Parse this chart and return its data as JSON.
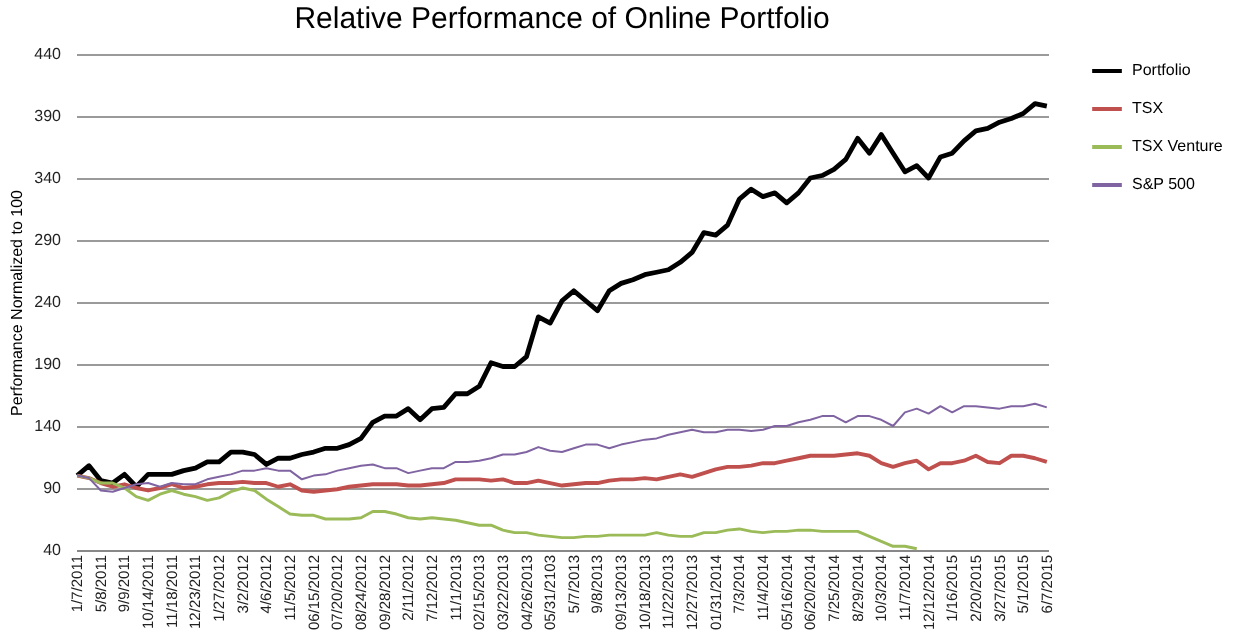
{
  "chart_data": {
    "type": "line",
    "title": "Relative Performance of Online Portfolio",
    "ylabel": "Performance Normalized to 100",
    "categories": [
      "1/7/2011",
      null,
      "5/8/2011",
      null,
      "9/9/2011",
      null,
      "10/14/2011",
      null,
      "11/18/2011",
      null,
      "12/23/2011",
      null,
      "1/27/2012",
      null,
      "3/2/2012",
      null,
      "4/6/2012",
      null,
      "11/5/2012",
      null,
      "06/15/2012",
      null,
      "07/20/2012",
      null,
      "08/24/2012",
      null,
      "09/28/2012",
      null,
      "2/11/2012",
      null,
      "7/12/2012",
      null,
      "11/1/2013",
      null,
      "02/15/2013",
      null,
      "03/22/2013",
      null,
      "04/26/2013",
      null,
      "05/31/2103",
      null,
      "5/7/2013",
      null,
      "9/8/2013",
      null,
      "09/13/2013",
      null,
      "10/18/2013",
      null,
      "11/22/2013",
      null,
      "12/27/2013",
      null,
      "01/31/2014",
      null,
      "7/3/2014",
      null,
      "11/4/2014",
      null,
      "05/16/2014",
      null,
      "06/20/2014",
      null,
      "7/25/2014",
      null,
      "8/29/2014",
      null,
      "10/3/2014",
      null,
      "11/7/2014",
      null,
      "12/12/2014",
      null,
      "1/16/2015",
      null,
      "2/20/2015",
      null,
      "3/27/2015",
      null,
      "5/1/2015",
      null,
      "6/7/2015"
    ],
    "series": [
      {
        "name": "Portfolio",
        "color": "#000000",
        "values": [
          100,
          108,
          96,
          94,
          101,
          91,
          101,
          101,
          101,
          104,
          106,
          111,
          111,
          119,
          119,
          117,
          109,
          114,
          114,
          117,
          119,
          122,
          122,
          125,
          130,
          143,
          148,
          148,
          154,
          145,
          154,
          155,
          166,
          166,
          172,
          191,
          188,
          188,
          196,
          228,
          223,
          241,
          249,
          241,
          233,
          249,
          255,
          258,
          262,
          264,
          266,
          272,
          280,
          296,
          294,
          302,
          323,
          331,
          325,
          328,
          320,
          328,
          340,
          342,
          347,
          355,
          372,
          360,
          375,
          360,
          345,
          350,
          340,
          357,
          360,
          370,
          378,
          380,
          385,
          388,
          392,
          400,
          398
        ]
      },
      {
        "name": "TSX",
        "color": "#c0504d",
        "values": [
          100,
          98,
          94,
          91,
          93,
          90,
          88,
          90,
          93,
          90,
          91,
          93,
          94,
          94,
          95,
          94,
          94,
          91,
          93,
          88,
          87,
          88,
          89,
          91,
          92,
          93,
          93,
          93,
          92,
          92,
          93,
          94,
          97,
          97,
          97,
          96,
          97,
          94,
          94,
          96,
          94,
          92,
          93,
          94,
          94,
          96,
          97,
          97,
          98,
          97,
          99,
          101,
          99,
          102,
          105,
          107,
          107,
          108,
          110,
          110,
          112,
          114,
          116,
          116,
          116,
          117,
          118,
          116,
          110,
          107,
          110,
          112,
          105,
          110,
          110,
          112,
          116,
          111,
          110,
          116,
          116,
          114,
          111
        ]
      },
      {
        "name": "TSX Venture",
        "color": "#9bbb59",
        "values": [
          100,
          98,
          94,
          94,
          90,
          83,
          80,
          85,
          88,
          85,
          83,
          80,
          82,
          87,
          90,
          88,
          81,
          75,
          69,
          68,
          68,
          65,
          65,
          65,
          66,
          71,
          71,
          69,
          66,
          65,
          66,
          65,
          64,
          62,
          60,
          60,
          56,
          54,
          54,
          52,
          51,
          50,
          50,
          51,
          51,
          52,
          52,
          52,
          52,
          54,
          52,
          51,
          51,
          54,
          54,
          56,
          57,
          55,
          54,
          55,
          55,
          56,
          56,
          55,
          55,
          55,
          55,
          51,
          47,
          43,
          43,
          41,
          null,
          null,
          null,
          null,
          null,
          null,
          null,
          null,
          null,
          null,
          null
        ]
      },
      {
        "name": "S&P 500",
        "color": "#8064a2",
        "values": [
          100,
          98,
          88,
          87,
          90,
          93,
          94,
          91,
          94,
          93,
          93,
          97,
          99,
          101,
          104,
          104,
          106,
          104,
          104,
          97,
          100,
          101,
          104,
          106,
          108,
          109,
          106,
          106,
          102,
          104,
          106,
          106,
          111,
          111,
          112,
          114,
          117,
          117,
          119,
          123,
          120,
          119,
          122,
          125,
          125,
          122,
          125,
          127,
          129,
          130,
          133,
          135,
          137,
          135,
          135,
          137,
          137,
          136,
          137,
          140,
          140,
          143,
          145,
          148,
          148,
          143,
          148,
          148,
          145,
          140,
          151,
          154,
          150,
          156,
          151,
          156,
          156,
          155,
          154,
          156,
          156,
          158,
          155
        ]
      }
    ],
    "ylim": [
      40,
      440
    ],
    "yticks": [
      40,
      90,
      140,
      190,
      240,
      290,
      340,
      390,
      440
    ],
    "grid": "y",
    "legend": "right"
  }
}
